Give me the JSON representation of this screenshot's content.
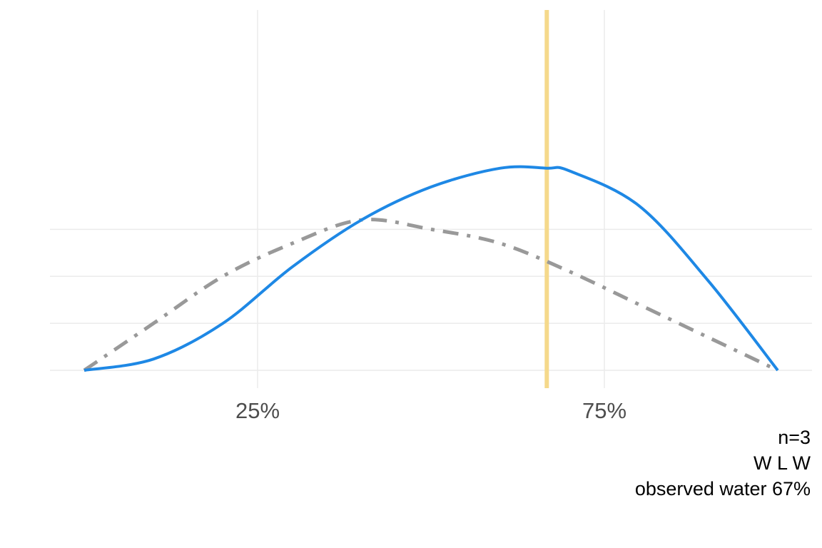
{
  "chart_data": {
    "type": "line",
    "title": "",
    "xlabel": "",
    "ylabel": "",
    "xlim": [
      0,
      1
    ],
    "x_ticks": [
      {
        "value": 0.25,
        "label": "25%"
      },
      {
        "value": 0.75,
        "label": "75%"
      }
    ],
    "y_axis_labels_shown": false,
    "grid": true,
    "series": [
      {
        "style": "dash-dot",
        "color": "#999999",
        "x": [
          0.0,
          0.1,
          0.2,
          0.3,
          0.4,
          0.5,
          0.6,
          0.7,
          0.8,
          0.9,
          1.0
        ],
        "y": [
          0.0,
          0.5,
          1.0,
          1.35,
          1.6,
          1.5,
          1.35,
          1.05,
          0.7,
          0.35,
          0.0
        ]
      },
      {
        "style": "solid",
        "color": "#1e88e5",
        "x": [
          0.0,
          0.1,
          0.2,
          0.3,
          0.4,
          0.5,
          0.6,
          0.667,
          0.7,
          0.8,
          0.9,
          1.0
        ],
        "y": [
          0.0,
          0.12,
          0.5,
          1.1,
          1.6,
          1.95,
          2.15,
          2.15,
          2.12,
          1.75,
          0.95,
          0.0
        ]
      }
    ],
    "reference_line": {
      "x": 0.667,
      "color": "#f5d98b"
    },
    "caption": [
      "n=3",
      "W L W",
      "observed water 67%"
    ]
  }
}
